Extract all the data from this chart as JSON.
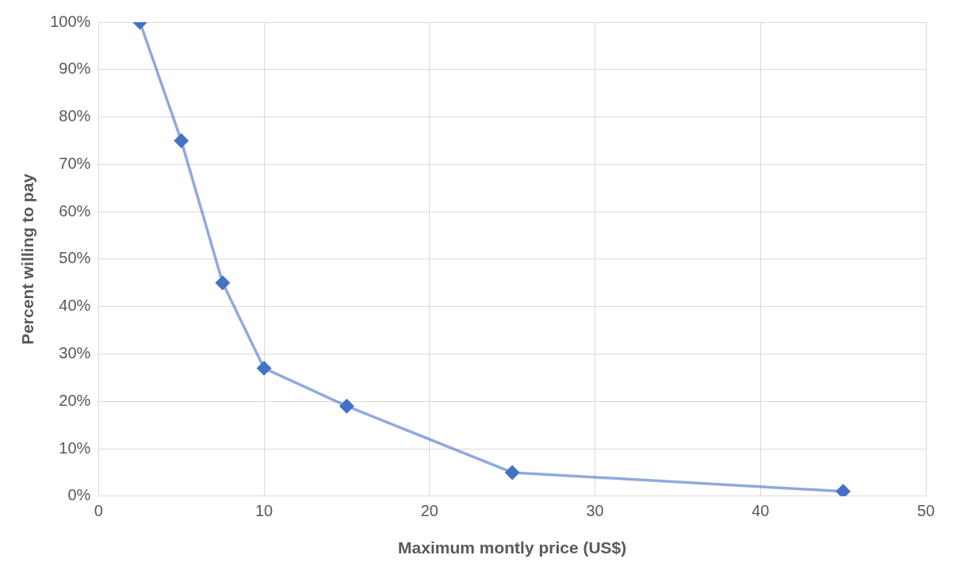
{
  "chart_data": {
    "type": "line",
    "xlabel": "Maximum montly price (US$)",
    "ylabel": "Percent willing to pay",
    "x": [
      2.5,
      5,
      7.5,
      10,
      15,
      25,
      45
    ],
    "series": [
      {
        "color": "#4472c4",
        "values": [
          100,
          75,
          45,
          27,
          19,
          5,
          1
        ]
      }
    ],
    "xlim": [
      0,
      50
    ],
    "xticks": [
      0,
      10,
      20,
      30,
      40,
      50
    ],
    "ylim": [
      0,
      100
    ],
    "yticks": [
      {
        "value": 0,
        "label": "0%"
      },
      {
        "value": 10,
        "label": "10%"
      },
      {
        "value": 20,
        "label": "20%"
      },
      {
        "value": 30,
        "label": "30%"
      },
      {
        "value": 40,
        "label": "40%"
      },
      {
        "value": 50,
        "label": "50%"
      },
      {
        "value": 60,
        "label": "60%"
      },
      {
        "value": 70,
        "label": "70%"
      },
      {
        "value": 80,
        "label": "80%"
      },
      {
        "value": 90,
        "label": "90%"
      },
      {
        "value": 100,
        "label": "100%"
      }
    ],
    "grid": true,
    "legend": false,
    "marker": "diamond",
    "line_style": "solid"
  }
}
